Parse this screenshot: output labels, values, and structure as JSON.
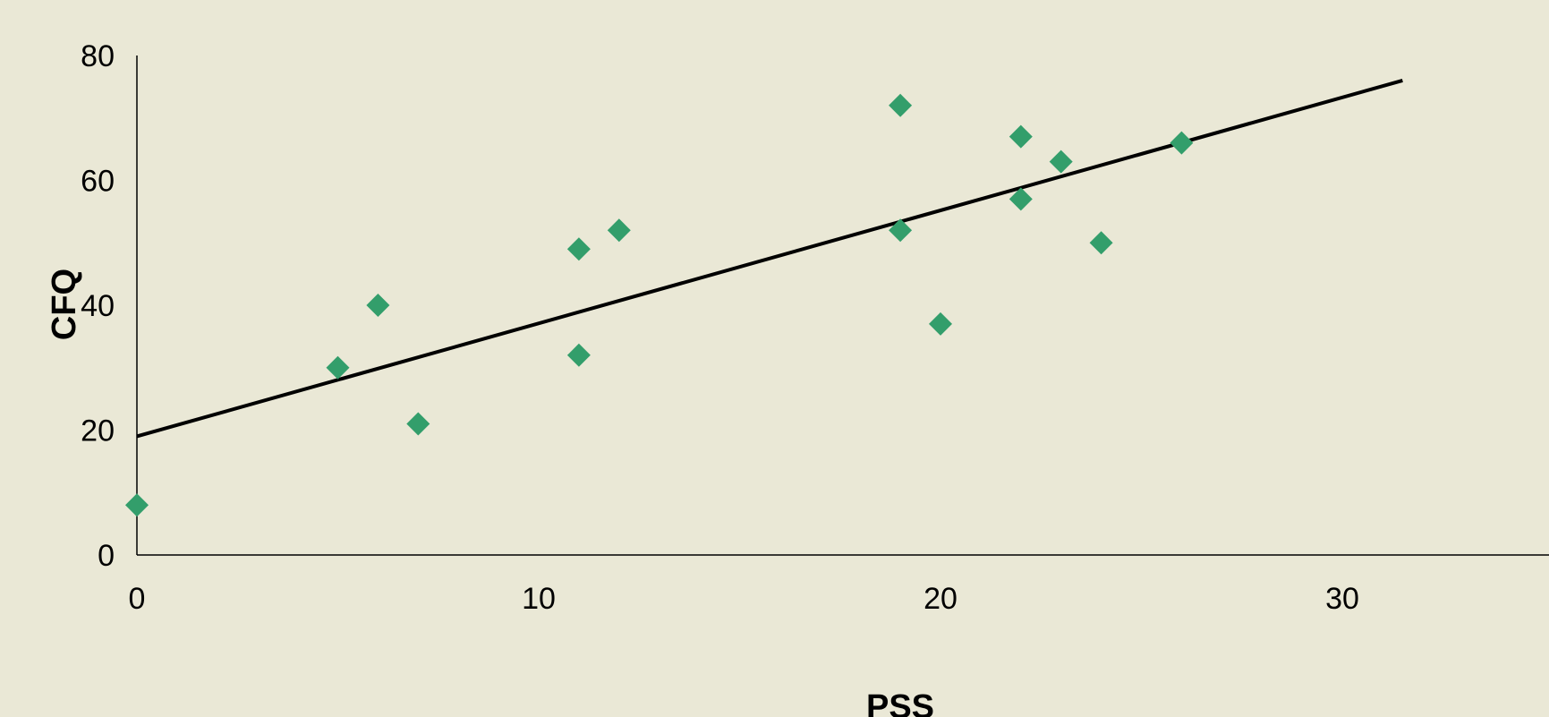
{
  "colors": {
    "background": "#EAE8D6",
    "marker": "#339E6B",
    "trendline": "#000000",
    "axis": "#000000"
  },
  "chart_data": {
    "type": "scatter",
    "xlabel": "PSS",
    "ylabel": "CFQ",
    "xlim": [
      0,
      31.5
    ],
    "ylim": [
      0,
      80
    ],
    "x_ticks": [
      0,
      10,
      20,
      30
    ],
    "y_ticks": [
      0,
      20,
      40,
      60,
      80
    ],
    "grid": false,
    "legend": "none",
    "marker": "diamond",
    "points": [
      {
        "x": 0,
        "y": 8
      },
      {
        "x": 5,
        "y": 30
      },
      {
        "x": 6,
        "y": 40
      },
      {
        "x": 7,
        "y": 21
      },
      {
        "x": 11,
        "y": 49
      },
      {
        "x": 11,
        "y": 32
      },
      {
        "x": 12,
        "y": 52
      },
      {
        "x": 19,
        "y": 72
      },
      {
        "x": 19,
        "y": 52
      },
      {
        "x": 20,
        "y": 37
      },
      {
        "x": 22,
        "y": 67
      },
      {
        "x": 22,
        "y": 57
      },
      {
        "x": 23,
        "y": 63
      },
      {
        "x": 24,
        "y": 50
      },
      {
        "x": 26,
        "y": 66
      }
    ],
    "trendline": {
      "type": "linear",
      "start": {
        "x": 0,
        "y": 19
      },
      "end": {
        "x": 31.5,
        "y": 76
      }
    }
  }
}
